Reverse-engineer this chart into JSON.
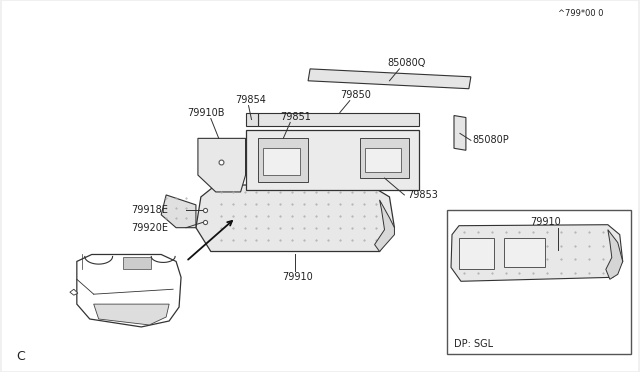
{
  "bg_color": "#f0f0f0",
  "white": "#ffffff",
  "line_color": "#333333",
  "text_color": "#222222",
  "part_fill": "#e8e8e8",
  "dot_color": "#aaaaaa",
  "title_letter": "C",
  "footer_text": "^799*00 0",
  "inset_label": "DP: SGL",
  "figsize": [
    6.4,
    3.72
  ],
  "dpi": 100
}
